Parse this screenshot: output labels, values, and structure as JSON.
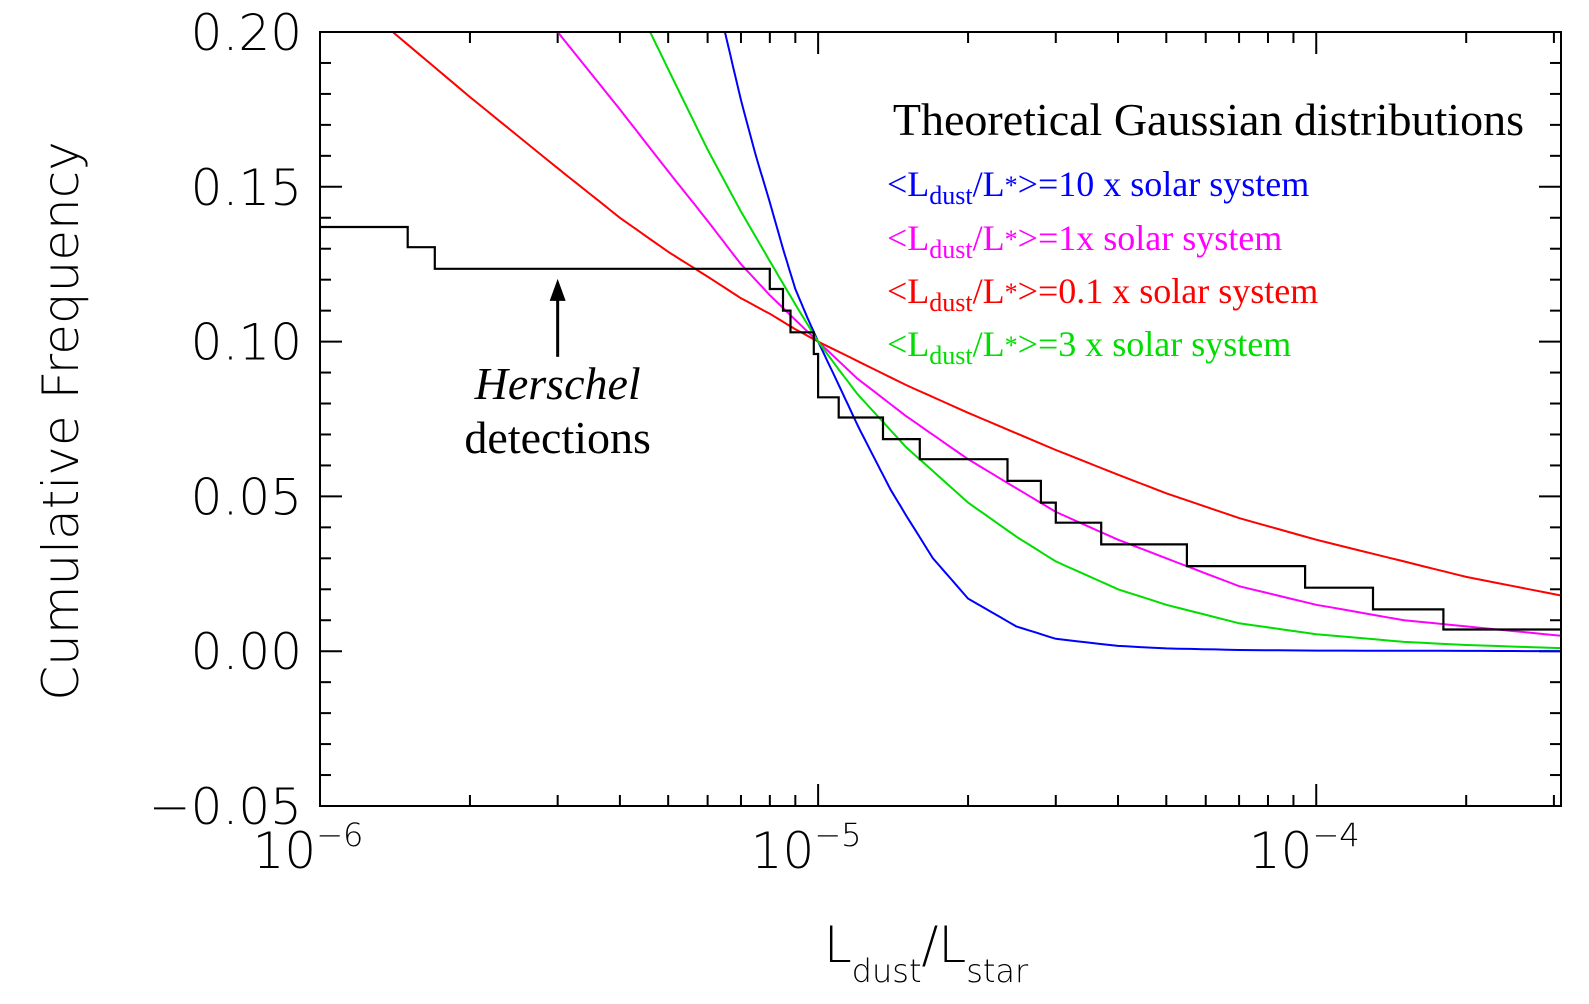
{
  "chart_data": {
    "type": "line",
    "xscale": "log",
    "xlim": [
      1e-06,
      0.00031
    ],
    "ylim": [
      -0.05,
      0.2
    ],
    "xlabel": {
      "main": "L",
      "sub": "dust",
      "slash": "/",
      "main2": "L",
      "sub2": "star"
    },
    "ylabel": "Cumulative Frequency",
    "yticks": [
      {
        "v": -0.05,
        "label": "−0.05"
      },
      {
        "v": 0.0,
        "label": "0.00"
      },
      {
        "v": 0.05,
        "label": "0.05"
      },
      {
        "v": 0.1,
        "label": "0.10"
      },
      {
        "v": 0.15,
        "label": "0.15"
      },
      {
        "v": 0.2,
        "label": "0.20"
      }
    ],
    "xticks": [
      {
        "v": 1e-06,
        "base": "10",
        "exp": "−6"
      },
      {
        "v": 1e-05,
        "base": "10",
        "exp": "−5"
      },
      {
        "v": 0.0001,
        "base": "10",
        "exp": "−4"
      }
    ],
    "legend": {
      "title": "Theoretical Gaussian distributions",
      "placement": "top-right",
      "entries": [
        {
          "pre": "<L",
          "sub1": "dust",
          "mid": "/L",
          "sub2": "*",
          "post": ">=10 x solar system",
          "color": "#0000ff"
        },
        {
          "pre": "<L",
          "sub1": "dust",
          "mid": "/L",
          "sub2": "*",
          "post": ">=1x solar system",
          "color": "#ff00ff"
        },
        {
          "pre": "<L",
          "sub1": "dust",
          "mid": "/L",
          "sub2": "*",
          "post": ">=0.1 x solar system",
          "color": "#ff0000"
        },
        {
          "pre": "<L",
          "sub1": "dust",
          "mid": "/L",
          "sub2": "*",
          "post": ">=3 x solar system",
          "color": "#00dd00"
        }
      ]
    },
    "annotation": {
      "line1": "Herschel",
      "line2": "detections",
      "at": {
        "x": 3e-06,
        "y": 0.1235
      }
    },
    "series": [
      {
        "color": "#0000ff",
        "points": [
          [
            6.5e-06,
            0.2
          ],
          [
            7e-06,
            0.178
          ],
          [
            7.5e-06,
            0.16
          ],
          [
            8e-06,
            0.145
          ],
          [
            8.5e-06,
            0.13
          ],
          [
            9e-06,
            0.117
          ],
          [
            9.5e-06,
            0.108
          ],
          [
            1e-05,
            0.1
          ],
          [
            1.1e-05,
            0.086
          ],
          [
            1.2e-05,
            0.073
          ],
          [
            1.3e-05,
            0.062
          ],
          [
            1.4e-05,
            0.052
          ],
          [
            1.5e-05,
            0.044
          ],
          [
            1.7e-05,
            0.03
          ],
          [
            2e-05,
            0.017
          ],
          [
            2.5e-05,
            0.008
          ],
          [
            3e-05,
            0.004
          ],
          [
            4e-05,
            0.0017
          ],
          [
            5e-05,
            0.0009
          ],
          [
            7e-05,
            0.0004
          ],
          [
            0.0001,
            0.0002
          ],
          [
            0.0002,
            0.0001
          ],
          [
            0.00031,
            0.0
          ]
        ]
      },
      {
        "color": "#ff00ff",
        "points": [
          [
            3e-06,
            0.2
          ],
          [
            4e-06,
            0.175
          ],
          [
            5e-06,
            0.155
          ],
          [
            6e-06,
            0.139
          ],
          [
            7e-06,
            0.125
          ],
          [
            8e-06,
            0.115
          ],
          [
            9e-06,
            0.107
          ],
          [
            1e-05,
            0.1
          ],
          [
            1.2e-05,
            0.088
          ],
          [
            1.5e-05,
            0.076
          ],
          [
            2e-05,
            0.062
          ],
          [
            3e-05,
            0.045
          ],
          [
            4e-05,
            0.036
          ],
          [
            5e-05,
            0.03
          ],
          [
            7e-05,
            0.021
          ],
          [
            0.0001,
            0.015
          ],
          [
            0.00015,
            0.01
          ],
          [
            0.0002,
            0.008
          ],
          [
            0.00031,
            0.005
          ]
        ]
      },
      {
        "color": "#ff0000",
        "points": [
          [
            1.4e-06,
            0.2
          ],
          [
            2e-06,
            0.179
          ],
          [
            3e-06,
            0.156
          ],
          [
            4e-06,
            0.14
          ],
          [
            5e-06,
            0.129
          ],
          [
            6e-06,
            0.121
          ],
          [
            7e-06,
            0.114
          ],
          [
            8e-06,
            0.109
          ],
          [
            9e-06,
            0.104
          ],
          [
            1e-05,
            0.1
          ],
          [
            1.5e-05,
            0.086
          ],
          [
            2e-05,
            0.077
          ],
          [
            3e-05,
            0.065
          ],
          [
            4e-05,
            0.057
          ],
          [
            5e-05,
            0.051
          ],
          [
            7e-05,
            0.043
          ],
          [
            0.0001,
            0.036
          ],
          [
            0.00015,
            0.029
          ],
          [
            0.0002,
            0.024
          ],
          [
            0.00031,
            0.018
          ]
        ]
      },
      {
        "color": "#00dd00",
        "points": [
          [
            4.6e-06,
            0.2
          ],
          [
            5e-06,
            0.188
          ],
          [
            6e-06,
            0.162
          ],
          [
            7e-06,
            0.142
          ],
          [
            8e-06,
            0.126
          ],
          [
            9e-06,
            0.112
          ],
          [
            1e-05,
            0.1
          ],
          [
            1.1e-05,
            0.091
          ],
          [
            1.2e-05,
            0.083
          ],
          [
            1.5e-05,
            0.066
          ],
          [
            2e-05,
            0.048
          ],
          [
            2.5e-05,
            0.037
          ],
          [
            3e-05,
            0.029
          ],
          [
            4e-05,
            0.02
          ],
          [
            5e-05,
            0.015
          ],
          [
            7e-05,
            0.009
          ],
          [
            0.0001,
            0.0055
          ],
          [
            0.00015,
            0.003
          ],
          [
            0.0002,
            0.002
          ],
          [
            0.00031,
            0.001
          ]
        ]
      },
      {
        "color": "#000000",
        "step": true,
        "points": [
          [
            1e-06,
            0.137
          ],
          [
            1.5e-06,
            0.137
          ],
          [
            1.5e-06,
            0.1305
          ],
          [
            1.7e-06,
            0.1305
          ],
          [
            1.7e-06,
            0.1235
          ],
          [
            8e-06,
            0.1235
          ],
          [
            8e-06,
            0.117
          ],
          [
            8.5e-06,
            0.117
          ],
          [
            8.5e-06,
            0.11
          ],
          [
            8.8e-06,
            0.11
          ],
          [
            8.8e-06,
            0.103
          ],
          [
            9.8e-06,
            0.103
          ],
          [
            9.8e-06,
            0.096
          ],
          [
            1e-05,
            0.096
          ],
          [
            1e-05,
            0.082
          ],
          [
            1.1e-05,
            0.082
          ],
          [
            1.1e-05,
            0.0755
          ],
          [
            1.35e-05,
            0.0755
          ],
          [
            1.35e-05,
            0.0685
          ],
          [
            1.6e-05,
            0.0685
          ],
          [
            1.6e-05,
            0.062
          ],
          [
            2.4e-05,
            0.062
          ],
          [
            2.4e-05,
            0.055
          ],
          [
            2.8e-05,
            0.055
          ],
          [
            2.8e-05,
            0.048
          ],
          [
            3e-05,
            0.048
          ],
          [
            3e-05,
            0.0415
          ],
          [
            3.7e-05,
            0.0415
          ],
          [
            3.7e-05,
            0.0345
          ],
          [
            5.5e-05,
            0.0345
          ],
          [
            5.5e-05,
            0.0275
          ],
          [
            9.5e-05,
            0.0275
          ],
          [
            9.5e-05,
            0.0205
          ],
          [
            0.00013,
            0.0205
          ],
          [
            0.00013,
            0.0135
          ],
          [
            0.00018,
            0.0135
          ],
          [
            0.00018,
            0.007
          ],
          [
            0.00031,
            0.007
          ]
        ]
      }
    ]
  }
}
